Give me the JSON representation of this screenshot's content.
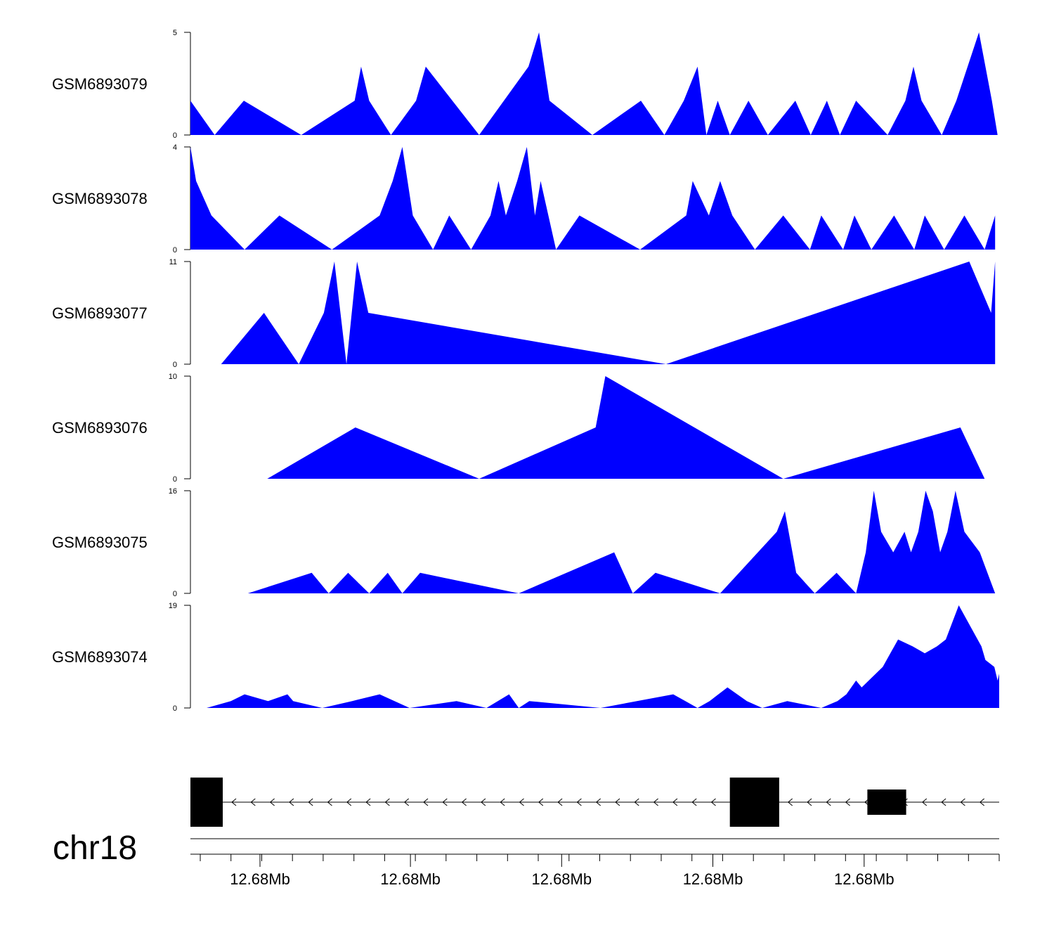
{
  "colors": {
    "signal": "#0000ff",
    "axis": "#000000",
    "gene": "#000000",
    "background": "#ffffff"
  },
  "chart_data": {
    "type": "area",
    "description_x": "genomic position (relative units 0-1 across region)",
    "tracks": [
      {
        "name": "GSM6893079",
        "ymax": 5,
        "ylim": [
          0,
          5
        ],
        "y_tick_labels": [
          "0",
          "5"
        ],
        "points": [
          [
            0,
            1.67
          ],
          [
            0.03,
            0
          ],
          [
            0.066,
            1.67
          ],
          [
            0.137,
            0
          ],
          [
            0.203,
            1.67
          ],
          [
            0.211,
            3.33
          ],
          [
            0.221,
            1.67
          ],
          [
            0.248,
            0
          ],
          [
            0.279,
            1.67
          ],
          [
            0.291,
            3.33
          ],
          [
            0.357,
            0
          ],
          [
            0.418,
            3.33
          ],
          [
            0.431,
            5
          ],
          [
            0.444,
            1.67
          ],
          [
            0.497,
            0
          ],
          [
            0.557,
            1.67
          ],
          [
            0.586,
            0
          ],
          [
            0.61,
            1.67
          ],
          [
            0.627,
            3.33
          ],
          [
            0.638,
            0
          ],
          [
            0.652,
            1.67
          ],
          [
            0.667,
            0
          ],
          [
            0.69,
            1.67
          ],
          [
            0.714,
            0
          ],
          [
            0.748,
            1.67
          ],
          [
            0.767,
            0
          ],
          [
            0.787,
            1.67
          ],
          [
            0.803,
            0
          ],
          [
            0.823,
            1.67
          ],
          [
            0.862,
            0
          ],
          [
            0.884,
            1.67
          ],
          [
            0.894,
            3.33
          ],
          [
            0.904,
            1.67
          ],
          [
            0.929,
            0
          ],
          [
            0.947,
            1.67
          ],
          [
            0.975,
            5
          ],
          [
            0.991,
            1.67
          ],
          [
            0.998,
            0
          ]
        ]
      },
      {
        "name": "GSM6893078",
        "ymax": 4,
        "ylim": [
          0,
          4
        ],
        "y_tick_labels": [
          "0",
          "4"
        ],
        "points": [
          [
            0,
            4
          ],
          [
            0.007,
            2.67
          ],
          [
            0.026,
            1.33
          ],
          [
            0.067,
            0
          ],
          [
            0.11,
            1.33
          ],
          [
            0.175,
            0
          ],
          [
            0.234,
            1.33
          ],
          [
            0.25,
            2.67
          ],
          [
            0.262,
            4
          ],
          [
            0.275,
            1.33
          ],
          [
            0.3,
            0
          ],
          [
            0.32,
            1.33
          ],
          [
            0.347,
            0
          ],
          [
            0.371,
            1.33
          ],
          [
            0.381,
            2.67
          ],
          [
            0.39,
            1.33
          ],
          [
            0.404,
            2.67
          ],
          [
            0.416,
            4
          ],
          [
            0.426,
            1.33
          ],
          [
            0.433,
            2.67
          ],
          [
            0.452,
            0
          ],
          [
            0.481,
            1.33
          ],
          [
            0.556,
            0
          ],
          [
            0.613,
            1.33
          ],
          [
            0.621,
            2.67
          ],
          [
            0.641,
            1.33
          ],
          [
            0.655,
            2.67
          ],
          [
            0.67,
            1.33
          ],
          [
            0.698,
            0
          ],
          [
            0.733,
            1.33
          ],
          [
            0.766,
            0
          ],
          [
            0.78,
            1.33
          ],
          [
            0.807,
            0
          ],
          [
            0.821,
            1.33
          ],
          [
            0.842,
            0
          ],
          [
            0.87,
            1.33
          ],
          [
            0.895,
            0
          ],
          [
            0.908,
            1.33
          ],
          [
            0.932,
            0
          ],
          [
            0.957,
            1.33
          ],
          [
            0.982,
            0
          ],
          [
            0.995,
            1.33
          ],
          [
            0.995,
            0
          ]
        ]
      },
      {
        "name": "GSM6893077",
        "ymax": 11,
        "ylim": [
          0,
          11
        ],
        "y_tick_labels": [
          "0",
          "11"
        ],
        "points": [
          [
            0.038,
            0
          ],
          [
            0.091,
            5.5
          ],
          [
            0.134,
            0
          ],
          [
            0.165,
            5.5
          ],
          [
            0.178,
            11
          ],
          [
            0.193,
            0
          ],
          [
            0.206,
            11
          ],
          [
            0.22,
            5.5
          ],
          [
            0.588,
            0
          ],
          [
            0.963,
            11
          ],
          [
            0.99,
            5.5
          ],
          [
            0.995,
            11
          ],
          [
            0.995,
            0
          ]
        ]
      },
      {
        "name": "GSM6893076",
        "ymax": 10,
        "ylim": [
          0,
          10
        ],
        "y_tick_labels": [
          "0",
          "10"
        ],
        "points": [
          [
            0.095,
            0
          ],
          [
            0.204,
            5
          ],
          [
            0.357,
            0
          ],
          [
            0.501,
            5
          ],
          [
            0.513,
            10
          ],
          [
            0.733,
            0
          ],
          [
            0.952,
            5
          ],
          [
            0.982,
            0
          ]
        ]
      },
      {
        "name": "GSM6893075",
        "ymax": 16,
        "ylim": [
          0,
          16
        ],
        "y_tick_labels": [
          "0",
          "16"
        ],
        "points": [
          [
            0.071,
            0
          ],
          [
            0.15,
            3.2
          ],
          [
            0.171,
            0
          ],
          [
            0.195,
            3.2
          ],
          [
            0.221,
            0
          ],
          [
            0.244,
            3.2
          ],
          [
            0.262,
            0
          ],
          [
            0.284,
            3.2
          ],
          [
            0.406,
            0
          ],
          [
            0.524,
            6.4
          ],
          [
            0.547,
            0
          ],
          [
            0.575,
            3.2
          ],
          [
            0.655,
            0
          ],
          [
            0.725,
            9.6
          ],
          [
            0.735,
            12.8
          ],
          [
            0.749,
            3.2
          ],
          [
            0.772,
            0
          ],
          [
            0.799,
            3.2
          ],
          [
            0.823,
            0
          ],
          [
            0.835,
            6.4
          ],
          [
            0.845,
            16
          ],
          [
            0.854,
            9.6
          ],
          [
            0.869,
            6.4
          ],
          [
            0.883,
            9.6
          ],
          [
            0.891,
            6.4
          ],
          [
            0.9,
            9.6
          ],
          [
            0.909,
            16
          ],
          [
            0.918,
            12.8
          ],
          [
            0.927,
            6.4
          ],
          [
            0.936,
            9.6
          ],
          [
            0.946,
            16
          ],
          [
            0.957,
            9.6
          ],
          [
            0.976,
            6.4
          ],
          [
            0.995,
            0
          ]
        ]
      },
      {
        "name": "GSM6893074",
        "ymax": 19,
        "ylim": [
          0,
          19
        ],
        "y_tick_labels": [
          "0",
          "19"
        ],
        "points": [
          [
            0.02,
            0
          ],
          [
            0.05,
            1.27
          ],
          [
            0.067,
            2.53
          ],
          [
            0.096,
            1.27
          ],
          [
            0.12,
            2.53
          ],
          [
            0.127,
            1.27
          ],
          [
            0.163,
            0
          ],
          [
            0.2,
            1.27
          ],
          [
            0.234,
            2.53
          ],
          [
            0.271,
            0
          ],
          [
            0.329,
            1.27
          ],
          [
            0.366,
            0
          ],
          [
            0.394,
            2.53
          ],
          [
            0.406,
            0
          ],
          [
            0.419,
            1.27
          ],
          [
            0.507,
            0
          ],
          [
            0.597,
            2.53
          ],
          [
            0.612,
            1.27
          ],
          [
            0.627,
            0
          ],
          [
            0.642,
            1.27
          ],
          [
            0.664,
            3.8
          ],
          [
            0.688,
            1.27
          ],
          [
            0.707,
            0
          ],
          [
            0.738,
            1.27
          ],
          [
            0.78,
            0
          ],
          [
            0.8,
            1.27
          ],
          [
            0.811,
            2.53
          ],
          [
            0.823,
            5.07
          ],
          [
            0.83,
            3.8
          ],
          [
            0.856,
            7.6
          ],
          [
            0.875,
            12.67
          ],
          [
            0.893,
            11.4
          ],
          [
            0.908,
            10.13
          ],
          [
            0.923,
            11.4
          ],
          [
            0.934,
            12.67
          ],
          [
            0.95,
            19
          ],
          [
            0.964,
            15.2
          ],
          [
            0.978,
            11.4
          ],
          [
            0.983,
            8.87
          ],
          [
            0.994,
            7.6
          ],
          [
            0.998,
            5.07
          ],
          [
            1,
            6.33
          ],
          [
            1,
            3.8
          ]
        ]
      }
    ],
    "gene_model": {
      "strand": "-",
      "exons": [
        {
          "start": 0.0,
          "end": 0.04,
          "height": "full"
        },
        {
          "start": 0.667,
          "end": 0.728,
          "height": "full"
        },
        {
          "start": 0.837,
          "end": 0.885,
          "height": "half"
        }
      ]
    },
    "genome_axis": {
      "chromosome": "chr18",
      "tick_labels": [
        "12.68Mb",
        "12.68Mb",
        "12.68Mb",
        "12.68Mb",
        "12.68Mb"
      ],
      "major_tick_positions": [
        0.086,
        0.272,
        0.459,
        0.646,
        0.833
      ],
      "minor_tick_count": 27
    }
  }
}
